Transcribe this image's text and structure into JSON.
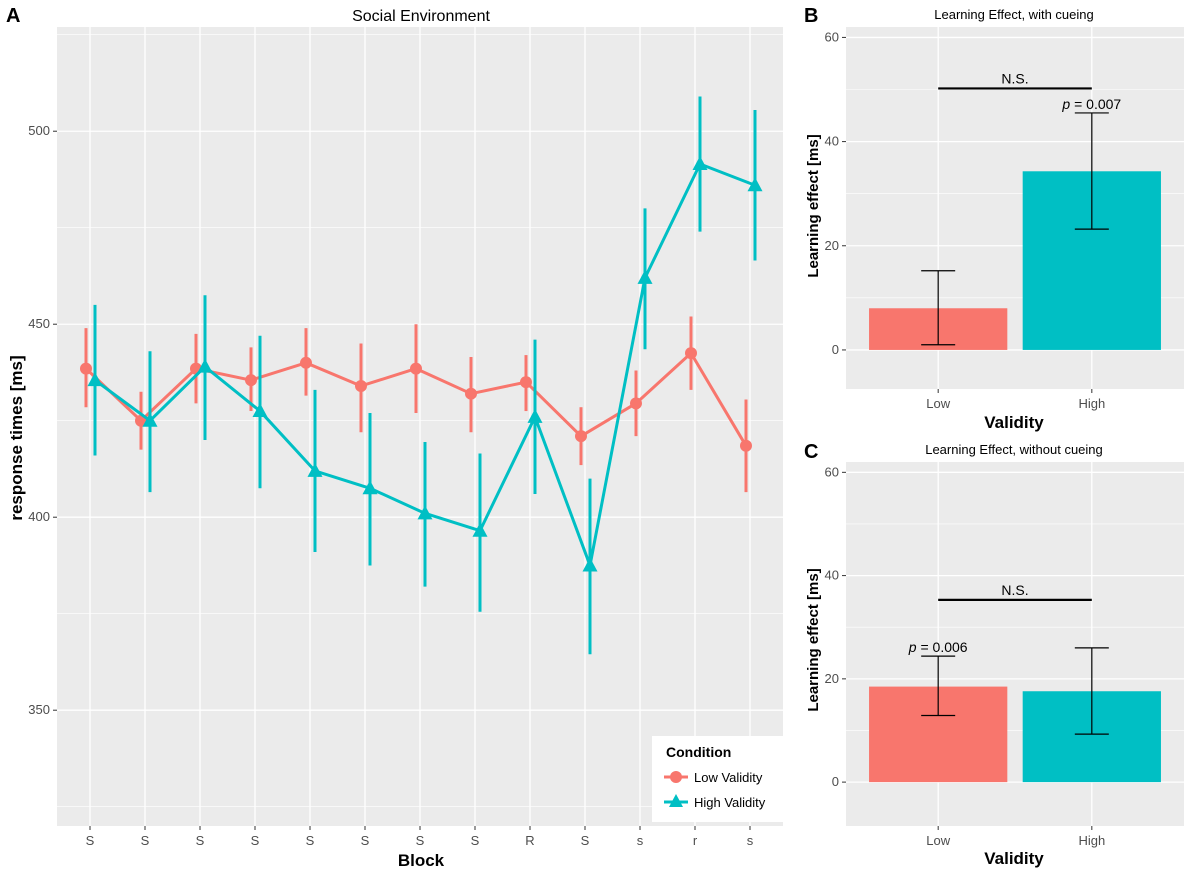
{
  "panel_labels": [
    "A",
    "B",
    "C"
  ],
  "colors": {
    "low": "#F8766D",
    "high": "#00BFC4",
    "panel_bg": "#EBEBEB",
    "grid": "#FFFFFF"
  },
  "chart_data": [
    {
      "panel": "A",
      "type": "line",
      "title": "Social Environment",
      "xlabel": "Block",
      "ylabel": "response times [ms]",
      "categories": [
        "S",
        "S",
        "S",
        "S",
        "S",
        "S",
        "S",
        "S",
        "R",
        "S",
        "s",
        "r",
        "s"
      ],
      "ylim": [
        320,
        527
      ],
      "yticks": [
        350,
        400,
        450,
        500
      ],
      "legend": {
        "title": "Condition",
        "position": "bottom-right"
      },
      "series": [
        {
          "name": "Low Validity",
          "color": "#F8766D",
          "marker": "circle",
          "values": [
            438.5,
            425.0,
            438.5,
            435.5,
            440.0,
            434.0,
            438.5,
            432.0,
            435.0,
            421.0,
            429.5,
            442.5,
            418.5
          ],
          "err_low": [
            428.5,
            417.5,
            429.5,
            427.5,
            431.5,
            422.0,
            427.0,
            422.0,
            427.5,
            413.5,
            421.0,
            433.0,
            406.5
          ],
          "err_high": [
            449.0,
            432.5,
            447.5,
            444.0,
            449.0,
            445.0,
            450.0,
            441.5,
            442.0,
            428.5,
            438.0,
            452.0,
            430.5
          ]
        },
        {
          "name": "High Validity",
          "color": "#00BFC4",
          "marker": "triangle",
          "values": [
            435.5,
            425.0,
            439.0,
            427.5,
            412.0,
            407.5,
            401.0,
            396.5,
            426.0,
            387.5,
            462.0,
            491.5,
            486.0
          ],
          "err_low": [
            416.0,
            406.5,
            420.0,
            407.5,
            391.0,
            387.5,
            382.0,
            375.5,
            406.0,
            364.5,
            443.5,
            474.0,
            466.5
          ],
          "err_high": [
            455.0,
            443.0,
            457.5,
            447.0,
            433.0,
            427.0,
            419.5,
            416.5,
            446.0,
            410.0,
            480.0,
            509.0,
            505.5
          ]
        }
      ]
    },
    {
      "panel": "B",
      "type": "bar",
      "title": "Learning Effect, with cueing",
      "xlabel": "Validity",
      "ylabel": "Learning effect [ms]",
      "categories": [
        "Low",
        "High"
      ],
      "values": [
        8.0,
        34.3
      ],
      "err_low": [
        1.0,
        23.2
      ],
      "err_high": [
        15.2,
        45.5
      ],
      "colors": [
        "#F8766D",
        "#00BFC4"
      ],
      "ylim": [
        -7.5,
        62
      ],
      "yticks": [
        0,
        20,
        40,
        60
      ],
      "annotations": [
        {
          "text": "N.S.",
          "kind": "bracket",
          "from": "Low",
          "to": "High",
          "y": 50.2
        },
        {
          "text": "p = 0.007",
          "kind": "label",
          "at": "High",
          "y": 45.5
        }
      ]
    },
    {
      "panel": "C",
      "type": "bar",
      "title": "Learning Effect, without cueing",
      "xlabel": "Validity",
      "ylabel": "Learning effect [ms]",
      "categories": [
        "Low",
        "High"
      ],
      "values": [
        18.5,
        17.6
      ],
      "err_low": [
        12.9,
        9.3
      ],
      "err_high": [
        24.4,
        26.0
      ],
      "colors": [
        "#F8766D",
        "#00BFC4"
      ],
      "ylim": [
        -8.5,
        62
      ],
      "yticks": [
        0,
        20,
        40,
        60
      ],
      "annotations": [
        {
          "text": "N.S.",
          "kind": "bracket",
          "from": "Low",
          "to": "High",
          "y": 35.3
        },
        {
          "text": "p = 0.006",
          "kind": "label",
          "at": "Low",
          "y": 24.4
        }
      ]
    }
  ]
}
